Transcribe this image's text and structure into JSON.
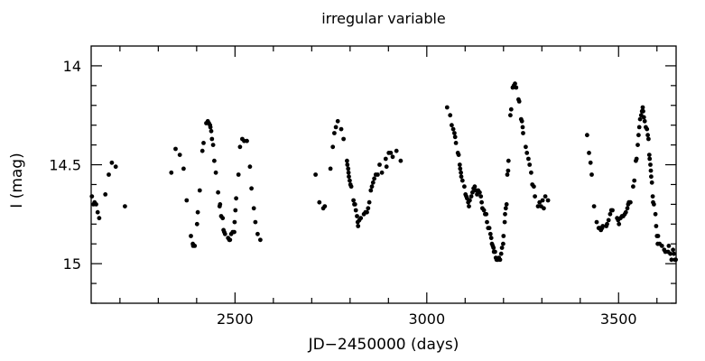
{
  "chart_data": {
    "type": "scatter",
    "title": "irregular variable",
    "xlabel": "JD−2450000 (days)",
    "ylabel": "I (mag)",
    "xlim": [
      2125,
      3650
    ],
    "ylim": [
      15.2,
      13.9
    ],
    "y_inverted": true,
    "grid": false,
    "x_major_ticks": [
      2500,
      3000,
      3500
    ],
    "x_tick_labels": [
      "2500",
      "3000",
      "3500"
    ],
    "x_minor_step": 100,
    "y_major_ticks": [
      14,
      14.5,
      15
    ],
    "y_tick_labels": [
      "14",
      "14.5",
      "15"
    ],
    "y_minor_step": 0.1,
    "series": [
      {
        "name": "I",
        "color": "#000000",
        "points": [
          [
            2127,
            14.66
          ],
          [
            2131,
            14.7
          ],
          [
            2134,
            14.69
          ],
          [
            2138,
            14.7
          ],
          [
            2142,
            14.74
          ],
          [
            2146,
            14.77
          ],
          [
            2162,
            14.65
          ],
          [
            2171,
            14.55
          ],
          [
            2179,
            14.49
          ],
          [
            2189,
            14.51
          ],
          [
            2213,
            14.71
          ],
          [
            2334,
            14.54
          ],
          [
            2345,
            14.42
          ],
          [
            2356,
            14.45
          ],
          [
            2366,
            14.52
          ],
          [
            2374,
            14.68
          ],
          [
            2385,
            14.86
          ],
          [
            2390,
            14.9
          ],
          [
            2391,
            14.91
          ],
          [
            2395,
            14.91
          ],
          [
            2401,
            14.8
          ],
          [
            2403,
            14.74
          ],
          [
            2408,
            14.63
          ],
          [
            2415,
            14.43
          ],
          [
            2418,
            14.39
          ],
          [
            2425,
            14.29
          ],
          [
            2429,
            14.28
          ],
          [
            2432,
            14.29
          ],
          [
            2435,
            14.3
          ],
          [
            2436,
            14.31
          ],
          [
            2438,
            14.33
          ],
          [
            2440,
            14.37
          ],
          [
            2443,
            14.4
          ],
          [
            2446,
            14.48
          ],
          [
            2450,
            14.54
          ],
          [
            2456,
            14.64
          ],
          [
            2460,
            14.71
          ],
          [
            2461,
            14.7
          ],
          [
            2464,
            14.76
          ],
          [
            2468,
            14.77
          ],
          [
            2470,
            14.83
          ],
          [
            2472,
            14.84
          ],
          [
            2474,
            14.85
          ],
          [
            2482,
            14.87
          ],
          [
            2485,
            14.88
          ],
          [
            2487,
            14.88
          ],
          [
            2490,
            14.85
          ],
          [
            2494,
            14.84
          ],
          [
            2498,
            14.84
          ],
          [
            2499,
            14.79
          ],
          [
            2501,
            14.73
          ],
          [
            2503,
            14.67
          ],
          [
            2509,
            14.55
          ],
          [
            2513,
            14.41
          ],
          [
            2519,
            14.37
          ],
          [
            2524,
            14.38
          ],
          [
            2531,
            14.38
          ],
          [
            2539,
            14.51
          ],
          [
            2543,
            14.62
          ],
          [
            2549,
            14.72
          ],
          [
            2553,
            14.79
          ],
          [
            2559,
            14.85
          ],
          [
            2566,
            14.88
          ],
          [
            2710,
            14.55
          ],
          [
            2720,
            14.69
          ],
          [
            2730,
            14.72
          ],
          [
            2734,
            14.71
          ],
          [
            2749,
            14.52
          ],
          [
            2755,
            14.41
          ],
          [
            2759,
            14.34
          ],
          [
            2763,
            14.31
          ],
          [
            2768,
            14.28
          ],
          [
            2777,
            14.32
          ],
          [
            2783,
            14.37
          ],
          [
            2792,
            14.48
          ],
          [
            2793,
            14.5
          ],
          [
            2795,
            14.52
          ],
          [
            2796,
            14.54
          ],
          [
            2797,
            14.56
          ],
          [
            2799,
            14.58
          ],
          [
            2801,
            14.6
          ],
          [
            2803,
            14.61
          ],
          [
            2809,
            14.68
          ],
          [
            2811,
            14.7
          ],
          [
            2813,
            14.7
          ],
          [
            2815,
            14.73
          ],
          [
            2818,
            14.76
          ],
          [
            2820,
            14.79
          ],
          [
            2821,
            14.81
          ],
          [
            2824,
            14.78
          ],
          [
            2828,
            14.77
          ],
          [
            2836,
            14.75
          ],
          [
            2840,
            14.74
          ],
          [
            2844,
            14.74
          ],
          [
            2847,
            14.72
          ],
          [
            2850,
            14.69
          ],
          [
            2854,
            14.63
          ],
          [
            2857,
            14.61
          ],
          [
            2860,
            14.59
          ],
          [
            2863,
            14.57
          ],
          [
            2867,
            14.55
          ],
          [
            2872,
            14.55
          ],
          [
            2877,
            14.5
          ],
          [
            2883,
            14.54
          ],
          [
            2893,
            14.47
          ],
          [
            2895,
            14.51
          ],
          [
            2901,
            14.44
          ],
          [
            2906,
            14.44
          ],
          [
            2911,
            14.46
          ],
          [
            2921,
            14.43
          ],
          [
            2932,
            14.48
          ],
          [
            3053,
            14.21
          ],
          [
            3061,
            14.25
          ],
          [
            3065,
            14.3
          ],
          [
            3069,
            14.32
          ],
          [
            3072,
            14.34
          ],
          [
            3074,
            14.36
          ],
          [
            3076,
            14.39
          ],
          [
            3081,
            14.44
          ],
          [
            3083,
            14.45
          ],
          [
            3086,
            14.5
          ],
          [
            3087,
            14.52
          ],
          [
            3089,
            14.54
          ],
          [
            3090,
            14.56
          ],
          [
            3093,
            14.58
          ],
          [
            3098,
            14.61
          ],
          [
            3101,
            14.65
          ],
          [
            3103,
            14.66
          ],
          [
            3105,
            14.67
          ],
          [
            3108,
            14.69
          ],
          [
            3110,
            14.71
          ],
          [
            3112,
            14.68
          ],
          [
            3116,
            14.66
          ],
          [
            3119,
            14.64
          ],
          [
            3122,
            14.62
          ],
          [
            3125,
            14.61
          ],
          [
            3128,
            14.63
          ],
          [
            3131,
            14.65
          ],
          [
            3134,
            14.63
          ],
          [
            3138,
            14.64
          ],
          [
            3141,
            14.66
          ],
          [
            3143,
            14.69
          ],
          [
            3145,
            14.72
          ],
          [
            3149,
            14.73
          ],
          [
            3152,
            14.75
          ],
          [
            3155,
            14.75
          ],
          [
            3157,
            14.79
          ],
          [
            3160,
            14.82
          ],
          [
            3163,
            14.82
          ],
          [
            3166,
            14.85
          ],
          [
            3168,
            14.87
          ],
          [
            3170,
            14.9
          ],
          [
            3172,
            14.91
          ],
          [
            3174,
            14.92
          ],
          [
            3175,
            14.94
          ],
          [
            3178,
            14.94
          ],
          [
            3180,
            14.97
          ],
          [
            3182,
            14.98
          ],
          [
            3185,
            14.98
          ],
          [
            3188,
            14.97
          ],
          [
            3191,
            14.98
          ],
          [
            3194,
            14.95
          ],
          [
            3196,
            14.92
          ],
          [
            3199,
            14.9
          ],
          [
            3200,
            14.86
          ],
          [
            3203,
            14.79
          ],
          [
            3204,
            14.75
          ],
          [
            3206,
            14.72
          ],
          [
            3208,
            14.7
          ],
          [
            3210,
            14.55
          ],
          [
            3212,
            14.53
          ],
          [
            3213,
            14.48
          ],
          [
            3218,
            14.25
          ],
          [
            3220,
            14.22
          ],
          [
            3224,
            14.11
          ],
          [
            3227,
            14.1
          ],
          [
            3230,
            14.09
          ],
          [
            3233,
            14.11
          ],
          [
            3239,
            14.17
          ],
          [
            3241,
            14.18
          ],
          [
            3246,
            14.27
          ],
          [
            3248,
            14.28
          ],
          [
            3250,
            14.31
          ],
          [
            3251,
            14.34
          ],
          [
            3258,
            14.41
          ],
          [
            3261,
            14.44
          ],
          [
            3265,
            14.47
          ],
          [
            3268,
            14.5
          ],
          [
            3272,
            14.54
          ],
          [
            3275,
            14.6
          ],
          [
            3279,
            14.61
          ],
          [
            3282,
            14.66
          ],
          [
            3290,
            14.71
          ],
          [
            3294,
            14.69
          ],
          [
            3298,
            14.71
          ],
          [
            3302,
            14.68
          ],
          [
            3305,
            14.72
          ],
          [
            3309,
            14.66
          ],
          [
            3316,
            14.68
          ],
          [
            3418,
            14.35
          ],
          [
            3423,
            14.44
          ],
          [
            3427,
            14.49
          ],
          [
            3430,
            14.55
          ],
          [
            3436,
            14.71
          ],
          [
            3443,
            14.79
          ],
          [
            3448,
            14.82
          ],
          [
            3451,
            14.82
          ],
          [
            3454,
            14.83
          ],
          [
            3457,
            14.82
          ],
          [
            3459,
            14.81
          ],
          [
            3468,
            14.81
          ],
          [
            3470,
            14.8
          ],
          [
            3474,
            14.78
          ],
          [
            3478,
            14.75
          ],
          [
            3481,
            14.73
          ],
          [
            3484,
            14.73
          ],
          [
            3496,
            14.77
          ],
          [
            3499,
            14.78
          ],
          [
            3501,
            14.8
          ],
          [
            3505,
            14.77
          ],
          [
            3509,
            14.76
          ],
          [
            3512,
            14.76
          ],
          [
            3516,
            14.75
          ],
          [
            3519,
            14.74
          ],
          [
            3523,
            14.72
          ],
          [
            3525,
            14.7
          ],
          [
            3527,
            14.69
          ],
          [
            3531,
            14.69
          ],
          [
            3538,
            14.61
          ],
          [
            3541,
            14.58
          ],
          [
            3545,
            14.48
          ],
          [
            3547,
            14.47
          ],
          [
            3550,
            14.4
          ],
          [
            3552,
            14.35
          ],
          [
            3554,
            14.31
          ],
          [
            3556,
            14.27
          ],
          [
            3559,
            14.25
          ],
          [
            3561,
            14.23
          ],
          [
            3563,
            14.21
          ],
          [
            3564,
            14.23
          ],
          [
            3566,
            14.26
          ],
          [
            3568,
            14.28
          ],
          [
            3571,
            14.31
          ],
          [
            3574,
            14.32
          ],
          [
            3576,
            14.35
          ],
          [
            3578,
            14.37
          ],
          [
            3580,
            14.45
          ],
          [
            3581,
            14.47
          ],
          [
            3583,
            14.5
          ],
          [
            3584,
            14.53
          ],
          [
            3585,
            14.56
          ],
          [
            3587,
            14.59
          ],
          [
            3589,
            14.66
          ],
          [
            3590,
            14.69
          ],
          [
            3592,
            14.7
          ],
          [
            3596,
            14.75
          ],
          [
            3598,
            14.81
          ],
          [
            3600,
            14.86
          ],
          [
            3603,
            14.86
          ],
          [
            3602,
            14.9
          ],
          [
            3607,
            14.9
          ],
          [
            3613,
            14.91
          ],
          [
            3619,
            14.93
          ],
          [
            3622,
            14.94
          ],
          [
            3629,
            14.94
          ],
          [
            3631,
            14.91
          ],
          [
            3635,
            14.95
          ],
          [
            3638,
            14.98
          ],
          [
            3642,
            14.93
          ],
          [
            3644,
            14.95
          ],
          [
            3647,
            14.98
          ],
          [
            3649,
            14.98
          ]
        ]
      }
    ]
  }
}
